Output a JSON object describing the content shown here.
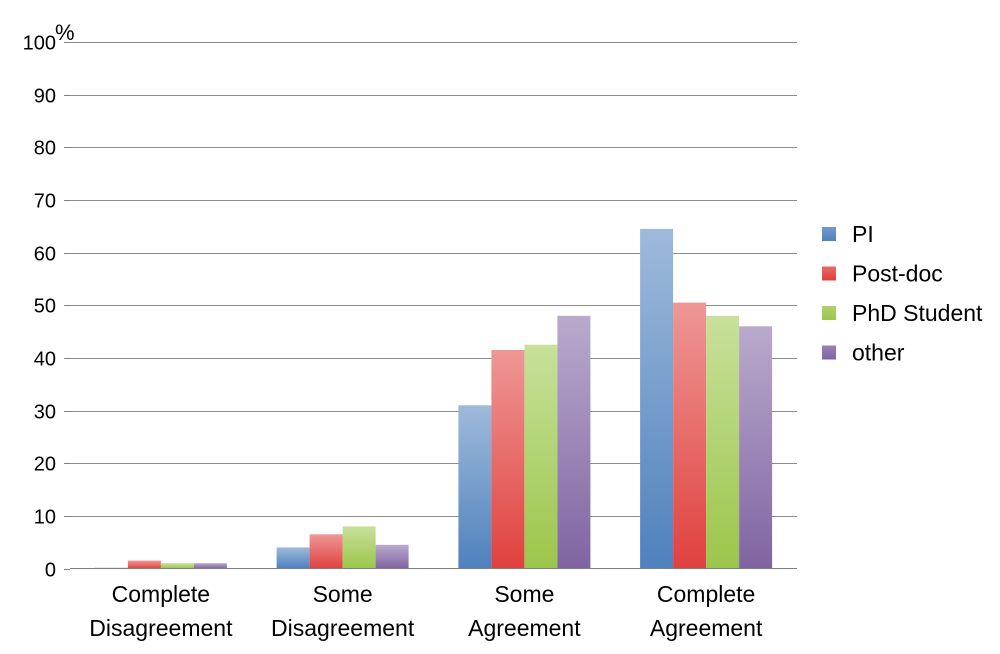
{
  "chart_data": {
    "type": "bar",
    "categories": [
      [
        "Complete",
        "Disagreement"
      ],
      [
        "Some",
        "Disagreement"
      ],
      [
        "Some",
        "Agreement"
      ],
      [
        "Complete",
        "Agreement"
      ]
    ],
    "series": [
      {
        "name": "PI",
        "values": [
          0,
          4,
          31,
          64.5
        ],
        "color": "#4f81bd"
      },
      {
        "name": "Post-doc",
        "values": [
          1.5,
          6.5,
          41.5,
          50.5
        ],
        "color": "#e0413e"
      },
      {
        "name": "PhD Student",
        "values": [
          1,
          8,
          42.5,
          48
        ],
        "color": "#9bc64a"
      },
      {
        "name": "other",
        "values": [
          1,
          4.5,
          48,
          46
        ],
        "color": "#8064a2"
      }
    ],
    "ylim": [
      0,
      100
    ],
    "yticks": [
      0,
      10,
      20,
      30,
      40,
      50,
      60,
      70,
      80,
      90,
      100
    ],
    "ylabel": "%",
    "grid": true,
    "legend_position": "right"
  }
}
